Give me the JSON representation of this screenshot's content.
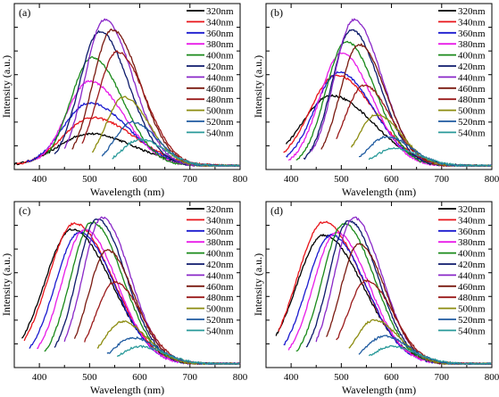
{
  "chart_data": [
    {
      "type": "line",
      "panel": "(a)",
      "xlabel": "Wavelength (nm)",
      "ylabel": "Intensity (a.u.)",
      "xlim": [
        350,
        800
      ],
      "xticks": [
        400,
        500,
        600,
        700,
        800
      ],
      "series": [
        {
          "name": "320nm",
          "color": "#000000",
          "x_start": 350,
          "peak_x": 500,
          "peak_y": 0.22,
          "width": 80
        },
        {
          "name": "340nm",
          "color": "#e8141a",
          "x_start": 355,
          "peak_x": 505,
          "peak_y": 0.33,
          "width": 75
        },
        {
          "name": "360nm",
          "color": "#1a1acf",
          "x_start": 375,
          "peak_x": 500,
          "peak_y": 0.43,
          "width": 68
        },
        {
          "name": "380nm",
          "color": "#e81ce8",
          "x_start": 395,
          "peak_x": 500,
          "peak_y": 0.58,
          "width": 60
        },
        {
          "name": "400nm",
          "color": "#1a8a1a",
          "x_start": 415,
          "peak_x": 505,
          "peak_y": 0.74,
          "width": 55
        },
        {
          "name": "420nm",
          "color": "#0d1a6b",
          "x_start": 430,
          "peak_x": 520,
          "peak_y": 0.92,
          "width": 52
        },
        {
          "name": "440nm",
          "color": "#8a28c8",
          "x_start": 450,
          "peak_x": 530,
          "peak_y": 1.0,
          "width": 50
        },
        {
          "name": "460nm",
          "color": "#7a1a10",
          "x_start": 465,
          "peak_x": 545,
          "peak_y": 0.93,
          "width": 50
        },
        {
          "name": "480nm",
          "color": "#9a1a1a",
          "x_start": 485,
          "peak_x": 555,
          "peak_y": 0.78,
          "width": 50
        },
        {
          "name": "500nm",
          "color": "#8c8c10",
          "x_start": 505,
          "peak_x": 568,
          "peak_y": 0.47,
          "width": 45
        },
        {
          "name": "520nm",
          "color": "#1e5aa0",
          "x_start": 525,
          "peak_x": 585,
          "peak_y": 0.3,
          "width": 45
        },
        {
          "name": "540nm",
          "color": "#2a9a9a",
          "x_start": 545,
          "peak_x": 600,
          "peak_y": 0.18,
          "width": 45
        }
      ]
    },
    {
      "type": "line",
      "panel": "(b)",
      "xlabel": "Wavelength (nm)",
      "ylabel": "Intensity (a.u.)",
      "xlim": [
        350,
        800
      ],
      "xticks": [
        400,
        500,
        600,
        700,
        800
      ],
      "series": [
        {
          "name": "320nm",
          "color": "#000000",
          "x_start": 390,
          "peak_x": 480,
          "peak_y": 0.48,
          "width": 75
        },
        {
          "name": "340nm",
          "color": "#e8141a",
          "x_start": 385,
          "peak_x": 490,
          "peak_y": 0.62,
          "width": 68
        },
        {
          "name": "360nm",
          "color": "#1a1acf",
          "x_start": 390,
          "peak_x": 495,
          "peak_y": 0.64,
          "width": 62
        },
        {
          "name": "380nm",
          "color": "#e81ce8",
          "x_start": 395,
          "peak_x": 500,
          "peak_y": 0.77,
          "width": 55
        },
        {
          "name": "400nm",
          "color": "#1a8a1a",
          "x_start": 410,
          "peak_x": 510,
          "peak_y": 0.85,
          "width": 52
        },
        {
          "name": "420nm",
          "color": "#0d1a6b",
          "x_start": 425,
          "peak_x": 520,
          "peak_y": 0.93,
          "width": 50
        },
        {
          "name": "440nm",
          "color": "#8a28c8",
          "x_start": 440,
          "peak_x": 525,
          "peak_y": 1.0,
          "width": 50
        },
        {
          "name": "460nm",
          "color": "#7a1a10",
          "x_start": 460,
          "peak_x": 535,
          "peak_y": 0.83,
          "width": 48
        },
        {
          "name": "480nm",
          "color": "#9a1a1a",
          "x_start": 490,
          "peak_x": 545,
          "peak_y": 0.55,
          "width": 48
        },
        {
          "name": "500nm",
          "color": "#8c8c10",
          "x_start": 520,
          "peak_x": 570,
          "peak_y": 0.35,
          "width": 45
        },
        {
          "name": "520nm",
          "color": "#1e5aa0",
          "x_start": 535,
          "peak_x": 590,
          "peak_y": 0.2,
          "width": 45
        },
        {
          "name": "540nm",
          "color": "#2a9a9a",
          "x_start": 555,
          "peak_x": 605,
          "peak_y": 0.12,
          "width": 45
        }
      ]
    },
    {
      "type": "line",
      "panel": "(c)",
      "xlabel": "Wavelength (nm)",
      "ylabel": "Intensity (a.u.)",
      "xlim": [
        350,
        800
      ],
      "xticks": [
        400,
        500,
        600,
        700,
        800
      ],
      "series": [
        {
          "name": "320nm",
          "color": "#000000",
          "x_start": 365,
          "peak_x": 465,
          "peak_y": 0.92,
          "width": 70
        },
        {
          "name": "340nm",
          "color": "#e8141a",
          "x_start": 370,
          "peak_x": 470,
          "peak_y": 0.96,
          "width": 68
        },
        {
          "name": "360nm",
          "color": "#1a1acf",
          "x_start": 380,
          "peak_x": 480,
          "peak_y": 0.9,
          "width": 62
        },
        {
          "name": "380nm",
          "color": "#e81ce8",
          "x_start": 395,
          "peak_x": 490,
          "peak_y": 0.92,
          "width": 58
        },
        {
          "name": "400nm",
          "color": "#1a8a1a",
          "x_start": 410,
          "peak_x": 505,
          "peak_y": 0.97,
          "width": 55
        },
        {
          "name": "420nm",
          "color": "#0d1a6b",
          "x_start": 430,
          "peak_x": 515,
          "peak_y": 0.99,
          "width": 52
        },
        {
          "name": "440nm",
          "color": "#8a28c8",
          "x_start": 450,
          "peak_x": 525,
          "peak_y": 1.0,
          "width": 50
        },
        {
          "name": "460nm",
          "color": "#7a1a10",
          "x_start": 470,
          "peak_x": 535,
          "peak_y": 0.78,
          "width": 48
        },
        {
          "name": "480nm",
          "color": "#9a1a1a",
          "x_start": 490,
          "peak_x": 550,
          "peak_y": 0.56,
          "width": 48
        },
        {
          "name": "500nm",
          "color": "#8c8c10",
          "x_start": 515,
          "peak_x": 565,
          "peak_y": 0.29,
          "width": 45
        },
        {
          "name": "520nm",
          "color": "#1e5aa0",
          "x_start": 535,
          "peak_x": 585,
          "peak_y": 0.18,
          "width": 45
        },
        {
          "name": "540nm",
          "color": "#2a9a9a",
          "x_start": 555,
          "peak_x": 600,
          "peak_y": 0.12,
          "width": 45
        }
      ]
    },
    {
      "type": "line",
      "panel": "(d)",
      "xlabel": "Wavelength (nm)",
      "ylabel": "Intensity (a.u.)",
      "xlim": [
        350,
        800
      ],
      "xticks": [
        400,
        500,
        600,
        700,
        800
      ],
      "series": [
        {
          "name": "320nm",
          "color": "#000000",
          "x_start": 370,
          "peak_x": 465,
          "peak_y": 0.88,
          "width": 70
        },
        {
          "name": "340nm",
          "color": "#e8141a",
          "x_start": 375,
          "peak_x": 465,
          "peak_y": 0.97,
          "width": 68
        },
        {
          "name": "360nm",
          "color": "#1a1acf",
          "x_start": 385,
          "peak_x": 480,
          "peak_y": 0.88,
          "width": 62
        },
        {
          "name": "380nm",
          "color": "#e81ce8",
          "x_start": 395,
          "peak_x": 490,
          "peak_y": 0.9,
          "width": 58
        },
        {
          "name": "400nm",
          "color": "#1a8a1a",
          "x_start": 410,
          "peak_x": 505,
          "peak_y": 0.96,
          "width": 55
        },
        {
          "name": "420nm",
          "color": "#0d1a6b",
          "x_start": 430,
          "peak_x": 515,
          "peak_y": 0.98,
          "width": 52
        },
        {
          "name": "440nm",
          "color": "#8a28c8",
          "x_start": 450,
          "peak_x": 525,
          "peak_y": 1.0,
          "width": 50
        },
        {
          "name": "460nm",
          "color": "#7a1a10",
          "x_start": 470,
          "peak_x": 535,
          "peak_y": 0.82,
          "width": 48
        },
        {
          "name": "480nm",
          "color": "#9a1a1a",
          "x_start": 490,
          "peak_x": 550,
          "peak_y": 0.57,
          "width": 48
        },
        {
          "name": "500nm",
          "color": "#8c8c10",
          "x_start": 515,
          "peak_x": 565,
          "peak_y": 0.3,
          "width": 45
        },
        {
          "name": "520nm",
          "color": "#1e5aa0",
          "x_start": 535,
          "peak_x": 585,
          "peak_y": 0.19,
          "width": 45
        },
        {
          "name": "540nm",
          "color": "#2a9a9a",
          "x_start": 555,
          "peak_x": 600,
          "peak_y": 0.12,
          "width": 45
        }
      ]
    }
  ]
}
